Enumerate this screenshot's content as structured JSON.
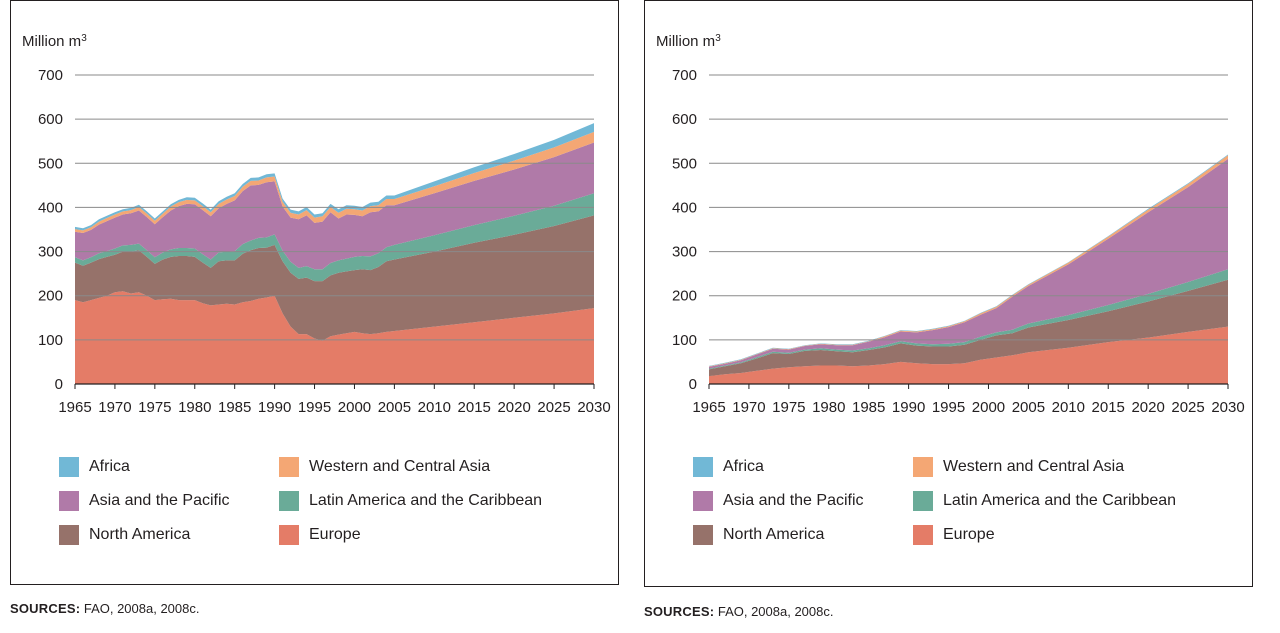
{
  "sources": {
    "label": "SOURCES:",
    "text": "FAO, 2008a, 2008c."
  },
  "chart_data": [
    {
      "type": "area",
      "stacked": true,
      "ylabel": "Million m",
      "ylabel_superscript": "3",
      "ylim": [
        0,
        700
      ],
      "yticks": [
        "0",
        "100",
        "200",
        "300",
        "400",
        "500",
        "600",
        "700"
      ],
      "xlim": [
        1965,
        2030
      ],
      "xticks": [
        "1965",
        "1970",
        "1975",
        "1980",
        "1985",
        "1990",
        "1995",
        "2000",
        "2005",
        "2010",
        "2015",
        "2020",
        "2025",
        "2030"
      ],
      "grid": true,
      "legend_position": "bottom",
      "x": [
        1965,
        1966,
        1967,
        1968,
        1969,
        1970,
        1971,
        1972,
        1973,
        1974,
        1975,
        1976,
        1977,
        1978,
        1979,
        1980,
        1981,
        1982,
        1983,
        1984,
        1985,
        1986,
        1987,
        1988,
        1989,
        1990,
        1991,
        1992,
        1993,
        1994,
        1995,
        1996,
        1997,
        1998,
        1999,
        2000,
        2001,
        2002,
        2003,
        2004,
        2005,
        2010,
        2015,
        2020,
        2025,
        2030
      ],
      "series": [
        {
          "name": "Europe",
          "color": "#e47c67",
          "values": [
            190,
            185,
            190,
            195,
            200,
            208,
            210,
            205,
            208,
            200,
            190,
            192,
            193,
            190,
            190,
            190,
            183,
            178,
            180,
            182,
            180,
            185,
            188,
            193,
            196,
            200,
            160,
            130,
            113,
            113,
            103,
            98,
            108,
            112,
            115,
            118,
            115,
            113,
            115,
            118,
            120,
            130,
            140,
            150,
            160,
            172
          ]
        },
        {
          "name": "North America",
          "color": "#96726a",
          "values": [
            85,
            83,
            85,
            88,
            88,
            85,
            90,
            95,
            95,
            88,
            82,
            90,
            95,
            100,
            100,
            98,
            92,
            85,
            98,
            98,
            100,
            110,
            115,
            115,
            113,
            115,
            118,
            122,
            125,
            128,
            130,
            135,
            138,
            140,
            140,
            140,
            145,
            145,
            150,
            160,
            162,
            170,
            180,
            188,
            198,
            210
          ]
        },
        {
          "name": "Latin America and the Caribbean",
          "color": "#6aab98",
          "values": [
            12,
            12,
            12,
            13,
            13,
            14,
            14,
            15,
            15,
            15,
            15,
            16,
            17,
            18,
            18,
            19,
            19,
            19,
            20,
            20,
            21,
            22,
            22,
            23,
            23,
            24,
            24,
            25,
            25,
            26,
            27,
            27,
            28,
            28,
            29,
            30,
            30,
            31,
            31,
            32,
            33,
            37,
            40,
            43,
            46,
            50
          ]
        },
        {
          "name": "Asia and the Pacific",
          "color": "#b07aa8",
          "values": [
            58,
            62,
            62,
            65,
            68,
            70,
            70,
            72,
            75,
            75,
            75,
            80,
            88,
            95,
            100,
            100,
            100,
            98,
            100,
            108,
            115,
            120,
            125,
            120,
            125,
            120,
            100,
            100,
            110,
            115,
            105,
            108,
            115,
            95,
            100,
            95,
            90,
            100,
            95,
            95,
            90,
            95,
            100,
            105,
            110,
            115
          ]
        },
        {
          "name": "Western and Central Asia",
          "color": "#f4a774",
          "values": [
            6,
            6,
            6,
            7,
            7,
            7,
            7,
            7,
            8,
            8,
            8,
            8,
            9,
            9,
            9,
            9,
            9,
            9,
            10,
            10,
            10,
            10,
            10,
            10,
            11,
            11,
            11,
            11,
            11,
            12,
            12,
            12,
            12,
            13,
            13,
            13,
            13,
            14,
            14,
            14,
            14,
            16,
            18,
            20,
            22,
            24
          ]
        },
        {
          "name": "Africa",
          "color": "#71b8d6",
          "values": [
            5,
            5,
            5,
            5,
            5,
            5,
            5,
            5,
            5,
            5,
            5,
            5,
            5,
            5,
            6,
            6,
            6,
            6,
            6,
            6,
            6,
            6,
            7,
            7,
            7,
            7,
            7,
            7,
            7,
            7,
            7,
            7,
            7,
            8,
            8,
            8,
            8,
            8,
            8,
            8,
            8,
            11,
            13,
            15,
            17,
            20
          ]
        }
      ]
    },
    {
      "type": "area",
      "stacked": true,
      "ylabel": "Million m",
      "ylabel_superscript": "3",
      "ylim": [
        0,
        700
      ],
      "yticks": [
        "0",
        "100",
        "200",
        "300",
        "400",
        "500",
        "600",
        "700"
      ],
      "xlim": [
        1965,
        2030
      ],
      "xticks": [
        "1965",
        "1970",
        "1975",
        "1980",
        "1985",
        "1990",
        "1995",
        "2000",
        "2005",
        "2010",
        "2015",
        "2020",
        "2025",
        "2030"
      ],
      "grid": true,
      "legend_position": "bottom",
      "x": [
        1965,
        1967,
        1969,
        1971,
        1973,
        1975,
        1977,
        1979,
        1981,
        1983,
        1985,
        1987,
        1989,
        1991,
        1993,
        1995,
        1997,
        1999,
        2001,
        2003,
        2005,
        2010,
        2015,
        2020,
        2025,
        2030
      ],
      "series": [
        {
          "name": "Europe",
          "color": "#e47c67",
          "values": [
            18,
            22,
            25,
            30,
            35,
            38,
            40,
            42,
            42,
            40,
            42,
            45,
            50,
            47,
            45,
            45,
            47,
            55,
            60,
            65,
            72,
            82,
            95,
            105,
            118,
            130
          ]
        },
        {
          "name": "North America",
          "color": "#96726a",
          "values": [
            15,
            18,
            22,
            28,
            35,
            30,
            35,
            35,
            32,
            32,
            35,
            38,
            42,
            40,
            40,
            40,
            42,
            45,
            50,
            50,
            56,
            63,
            70,
            82,
            93,
            106
          ]
        },
        {
          "name": "Latin America and the Caribbean",
          "color": "#6aab98",
          "values": [
            2,
            2,
            2,
            3,
            3,
            3,
            3,
            4,
            4,
            4,
            4,
            5,
            5,
            5,
            5,
            6,
            6,
            7,
            7,
            8,
            9,
            11,
            14,
            17,
            20,
            24
          ]
        },
        {
          "name": "Asia and the Pacific",
          "color": "#b07aa8",
          "values": [
            4,
            4,
            5,
            6,
            7,
            7,
            8,
            9,
            10,
            12,
            15,
            18,
            22,
            25,
            32,
            38,
            45,
            50,
            55,
            75,
            85,
            115,
            150,
            185,
            215,
            250
          ]
        },
        {
          "name": "Western and Central Asia",
          "color": "#f4a774",
          "values": [
            1,
            1,
            1,
            1,
            1,
            1,
            1,
            1,
            1,
            1,
            1,
            2,
            2,
            2,
            2,
            2,
            2,
            3,
            3,
            3,
            3,
            4,
            5,
            6,
            7,
            8
          ]
        },
        {
          "name": "Africa",
          "color": "#71b8d6",
          "values": [
            1,
            1,
            1,
            1,
            1,
            1,
            1,
            1,
            1,
            1,
            1,
            1,
            1,
            1,
            1,
            1,
            1,
            1,
            1,
            1,
            1,
            1,
            1,
            2,
            2,
            2
          ]
        }
      ]
    }
  ],
  "legend": [
    {
      "label": "Africa",
      "color": "#71b8d6",
      "icon": "swatch"
    },
    {
      "label": "Western and Central Asia",
      "color": "#f4a774",
      "icon": "swatch"
    },
    {
      "label": "Asia and the Pacific",
      "color": "#b07aa8",
      "icon": "swatch"
    },
    {
      "label": "Latin America and the Caribbean",
      "color": "#6aab98",
      "icon": "swatch"
    },
    {
      "label": "North America",
      "color": "#96726a",
      "icon": "swatch"
    },
    {
      "label": "Europe",
      "color": "#e47c67",
      "icon": "swatch"
    }
  ]
}
